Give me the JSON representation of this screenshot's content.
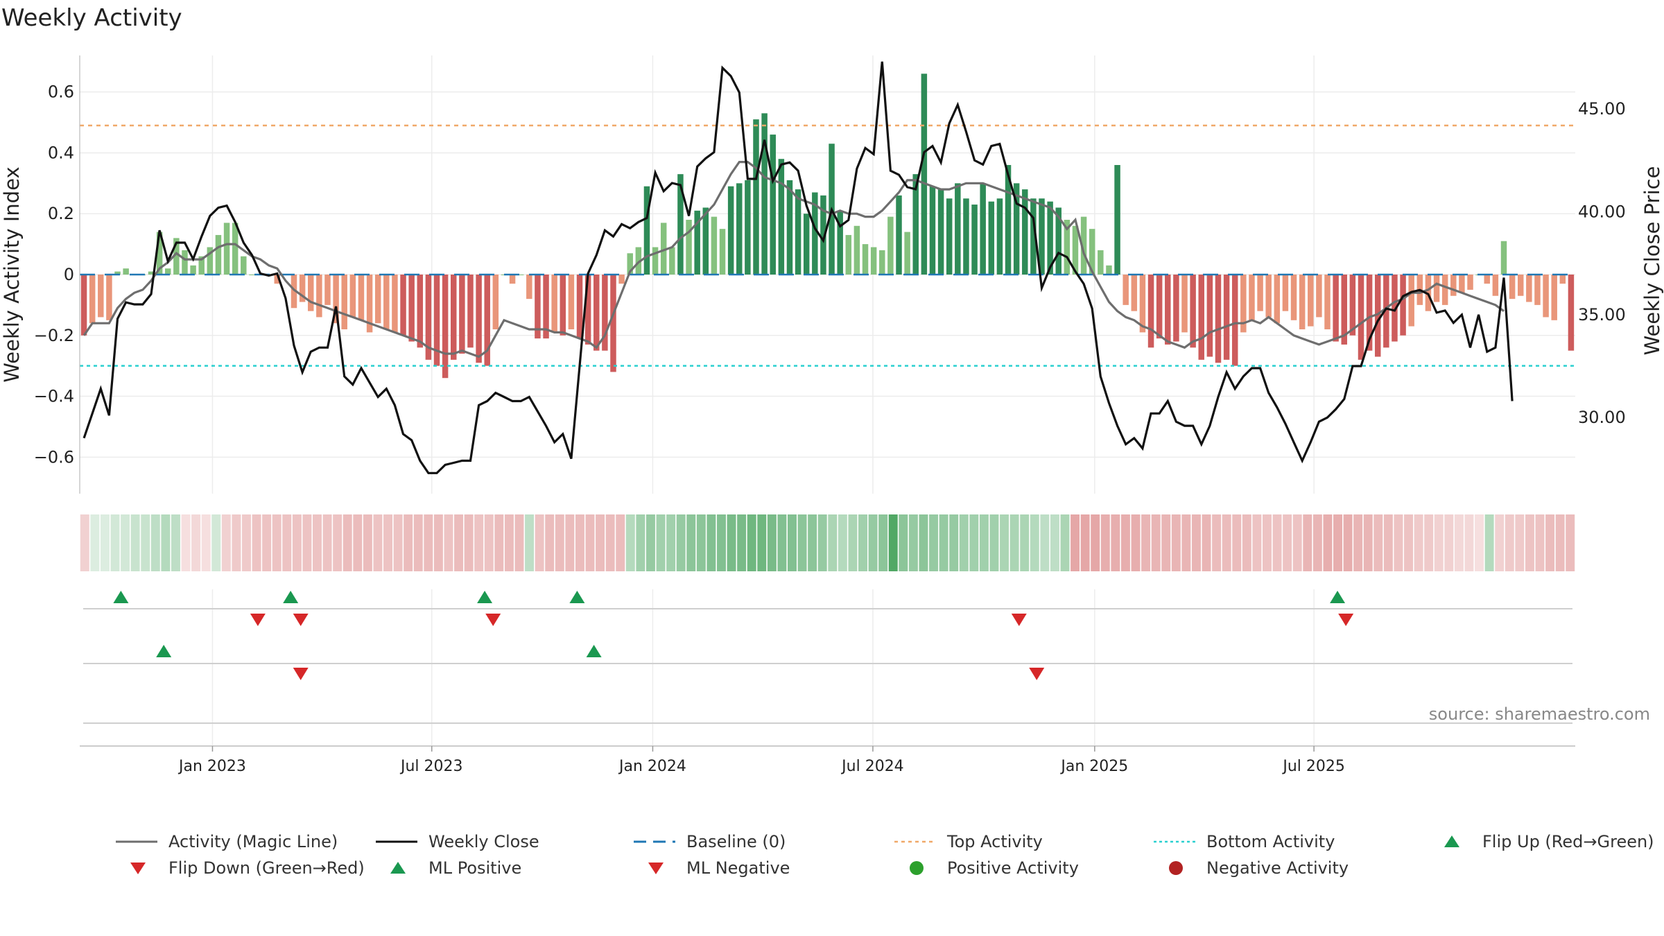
{
  "title": "Weekly Activity",
  "source": "source: sharemaestro.com",
  "colors": {
    "strong_pos": "#2e8b57",
    "weak_pos": "#85c17e",
    "strong_neg": "#cd5c5c",
    "weak_neg": "#e9967a",
    "magic_line": "#6e6e6e",
    "close_line": "#111111",
    "baseline": "#1f77b4",
    "top_line": "#f0a868",
    "bottom_line": "#2ad0d0",
    "flip_up": "#1a9850",
    "flip_down": "#d62728",
    "positive_dot": "#2ca02c",
    "negative_dot": "#b22222"
  },
  "chart_data": {
    "type": "bar",
    "title": "Weekly Activity",
    "ylabel": "Weekly Activity Index",
    "y2label": "Weekly Close Price",
    "ylim": [
      -0.72,
      0.72
    ],
    "y2lim": [
      26.3,
      47.6
    ],
    "yticks": [
      "0.6",
      "0.4",
      "0.2",
      "0",
      "−0.2",
      "−0.4",
      "−0.6"
    ],
    "yticks_values": [
      0.6,
      0.4,
      0.2,
      0,
      -0.2,
      -0.4,
      -0.6
    ],
    "y2ticks": [
      "45.00",
      "40.00",
      "35.00",
      "30.00"
    ],
    "y2ticks_values": [
      45,
      40,
      35,
      30
    ],
    "xticks": [
      "Jan 2023",
      "Jul 2023",
      "Jan 2024",
      "Jul 2024",
      "Jan 2025",
      "Jul 2025"
    ],
    "xticks_week_index": [
      15.3,
      41.4,
      67.7,
      93.9,
      120.3,
      146.4
    ],
    "n_weeks": 158,
    "top_activity": 0.49,
    "bottom_activity": -0.3,
    "activity": [
      -0.2,
      -0.16,
      -0.14,
      -0.15,
      0.01,
      0.02,
      0,
      0,
      0.01,
      0.14,
      0.02,
      0.12,
      0.08,
      0.03,
      0.06,
      0.09,
      0.13,
      0.17,
      0.17,
      0.06,
      0,
      0,
      0,
      -0.03,
      0,
      -0.11,
      -0.09,
      -0.12,
      -0.14,
      -0.1,
      -0.16,
      -0.18,
      -0.14,
      -0.15,
      -0.19,
      -0.16,
      -0.18,
      -0.19,
      -0.2,
      -0.22,
      -0.24,
      -0.28,
      -0.3,
      -0.34,
      -0.28,
      -0.26,
      -0.24,
      -0.29,
      -0.3,
      -0.18,
      0,
      -0.03,
      0,
      -0.08,
      -0.21,
      -0.21,
      -0.19,
      -0.2,
      -0.18,
      -0.21,
      -0.23,
      -0.25,
      -0.25,
      -0.32,
      -0.03,
      0.07,
      0.09,
      0.29,
      0.09,
      0.17,
      0.09,
      0.33,
      0.18,
      0.21,
      0.22,
      0.19,
      0.15,
      0.29,
      0.3,
      0.31,
      0.51,
      0.53,
      0.46,
      0.38,
      0.31,
      0.28,
      0.2,
      0.27,
      0.26,
      0.43,
      0.21,
      0.13,
      0.16,
      0.1,
      0.09,
      0.08,
      0.19,
      0.26,
      0.14,
      0.33,
      0.66,
      0.29,
      0.28,
      0.25,
      0.3,
      0.25,
      0.23,
      0.3,
      0.24,
      0.25,
      0.36,
      0.3,
      0.28,
      0.25,
      0.25,
      0.24,
      0.22,
      0.18,
      0.16,
      0.19,
      0.15,
      0.08,
      0.03,
      0.36,
      -0.1,
      -0.12,
      -0.19,
      -0.24,
      -0.21,
      -0.23,
      -0.22,
      -0.19,
      -0.24,
      -0.28,
      -0.27,
      -0.29,
      -0.28,
      -0.3,
      -0.19,
      -0.15,
      -0.12,
      -0.14,
      -0.16,
      -0.12,
      -0.15,
      -0.18,
      -0.17,
      -0.14,
      -0.18,
      -0.22,
      -0.23,
      -0.2,
      -0.28,
      -0.25,
      -0.27,
      -0.24,
      -0.22,
      -0.2
    ],
    "activity_tail": [
      -0.17,
      -0.1,
      -0.12,
      -0.09,
      -0.1,
      -0.07,
      -0.06,
      -0.05,
      0,
      -0.03,
      -0.07,
      0.11,
      -0.08,
      -0.07,
      -0.09,
      -0.1,
      -0.14,
      -0.15,
      -0.03,
      -0.25
    ],
    "magic_line": [
      -0.2,
      -0.16,
      -0.16,
      -0.16,
      -0.11,
      -0.08,
      -0.06,
      -0.05,
      -0.02,
      0.02,
      0.04,
      0.07,
      0.05,
      0.05,
      0.05,
      0.07,
      0.09,
      0.1,
      0.1,
      0.08,
      0.06,
      0.05,
      0.03,
      0.02,
      -0.02,
      -0.05,
      -0.07,
      -0.09,
      -0.1,
      -0.11,
      -0.12,
      -0.13,
      -0.14,
      -0.15,
      -0.16,
      -0.17,
      -0.18,
      -0.19,
      -0.2,
      -0.21,
      -0.22,
      -0.24,
      -0.25,
      -0.26,
      -0.26,
      -0.25,
      -0.26,
      -0.27,
      -0.25,
      -0.2,
      -0.15,
      -0.16,
      -0.17,
      -0.18,
      -0.18,
      -0.18,
      -0.19,
      -0.19,
      -0.2,
      -0.21,
      -0.22,
      -0.24,
      -0.2,
      -0.13,
      -0.06,
      0.01,
      0.04,
      0.06,
      0.07,
      0.08,
      0.09,
      0.12,
      0.14,
      0.17,
      0.2,
      0.23,
      0.28,
      0.33,
      0.37,
      0.37,
      0.35,
      0.32,
      0.31,
      0.3,
      0.28,
      0.25,
      0.24,
      0.23,
      0.21,
      0.2,
      0.21,
      0.2,
      0.2,
      0.19,
      0.19,
      0.21,
      0.24,
      0.27,
      0.31,
      0.31,
      0.3,
      0.29,
      0.28,
      0.28,
      0.29,
      0.3,
      0.3,
      0.3,
      0.29,
      0.28,
      0.27,
      0.26,
      0.25,
      0.24,
      0.23,
      0.22,
      0.19,
      0.15,
      0.18,
      0.07,
      0.01,
      -0.04,
      -0.09,
      -0.12,
      -0.14,
      -0.15,
      -0.17,
      -0.18,
      -0.2,
      -0.22,
      -0.23,
      -0.24,
      -0.22,
      -0.21,
      -0.19,
      -0.18,
      -0.17,
      -0.16,
      -0.16,
      -0.15,
      -0.16,
      -0.14,
      -0.16,
      -0.18,
      -0.2,
      -0.21,
      -0.22,
      -0.23,
      -0.22,
      -0.21,
      -0.2,
      -0.18,
      -0.16,
      -0.14,
      -0.13,
      -0.11,
      -0.09,
      -0.08,
      -0.06,
      -0.06
    ],
    "magic_line_tail": [
      -0.05,
      -0.03,
      -0.04,
      -0.05,
      -0.06,
      -0.07,
      -0.08,
      -0.09,
      -0.1,
      -0.12
    ],
    "weekly_close": [
      29.0,
      30.2,
      31.4,
      30.1,
      34.8,
      35.6,
      35.5,
      35.5,
      36.0,
      39.1,
      37.6,
      38.5,
      38.5,
      37.7,
      38.8,
      39.8,
      40.2,
      40.3,
      39.5,
      38.5,
      37.9,
      37.0,
      36.9,
      37.0,
      35.8,
      33.5,
      32.2,
      33.2,
      33.4,
      33.4,
      35.4,
      32.0,
      31.6,
      32.4,
      31.7,
      31.0,
      31.4,
      30.6,
      29.2,
      28.9,
      27.9,
      27.3,
      27.3,
      27.7,
      27.8,
      27.9,
      27.9,
      30.6,
      30.8,
      31.2,
      31.0,
      30.8,
      30.8,
      31.0,
      30.3,
      29.6,
      28.8,
      29.2,
      28.0,
      32.5,
      37.0,
      37.9,
      39.1,
      38.8,
      39.4,
      39.2,
      39.5,
      39.7,
      41.9,
      41.0,
      41.4,
      41.3,
      39.8,
      42.2,
      42.6,
      42.9,
      47.0,
      46.6,
      45.8,
      41.6,
      41.6,
      43.5,
      41.5,
      42.3,
      42.4,
      42.0,
      40.3,
      39.2,
      38.6,
      40.1,
      39.3,
      39.6,
      42.1,
      43.1,
      42.8,
      47.3,
      42.0,
      41.8,
      41.2,
      41.1,
      42.9,
      43.2,
      42.4,
      44.3,
      45.2,
      43.9,
      42.5,
      42.3,
      43.2,
      43.3,
      41.8,
      40.4,
      40.2,
      39.7,
      36.3,
      37.3,
      38.0,
      37.8,
      37.1,
      36.5,
      35.3,
      32.0,
      30.7,
      29.6,
      28.7,
      29.0,
      28.5,
      30.2,
      30.2,
      30.8,
      29.8,
      29.6,
      29.6,
      28.7,
      29.6,
      31.0,
      32.2,
      31.4,
      32.0,
      32.4,
      32.4,
      31.2,
      30.5,
      29.7,
      28.8,
      27.9,
      28.8,
      29.8,
      30.0,
      30.4,
      30.9,
      32.5,
      32.5,
      33.8,
      34.7,
      35.3,
      35.2,
      35.9,
      36.1,
      36.2,
      36.0,
      35.1
    ],
    "weekly_close_tail": [
      35.2,
      34.6,
      35.0,
      33.4,
      35.0,
      33.2,
      33.4,
      36.8,
      30.8
    ],
    "strip_values": [
      -0.2,
      0.05,
      0.05,
      0.1,
      0.1,
      0.15,
      0.15,
      0.2,
      0.25,
      0.2,
      -0.1,
      -0.15,
      -0.1,
      0.1,
      -0.2,
      -0.25,
      -0.25,
      -0.3,
      -0.3,
      -0.3,
      -0.3,
      -0.3,
      -0.3,
      -0.3,
      -0.3,
      -0.3,
      -0.35,
      -0.35,
      -0.35,
      -0.3,
      -0.3,
      -0.3,
      -0.35,
      -0.35,
      -0.35,
      -0.35,
      -0.3,
      -0.35,
      -0.35,
      -0.3,
      -0.3,
      -0.35,
      -0.35,
      -0.35,
      0.2,
      -0.3,
      -0.35,
      -0.35,
      -0.35,
      -0.35,
      -0.35,
      -0.35,
      -0.35,
      -0.35,
      0.25,
      0.35,
      0.4,
      0.35,
      0.35,
      0.4,
      0.45,
      0.45,
      0.5,
      0.5,
      0.55,
      0.55,
      0.6,
      0.6,
      0.55,
      0.5,
      0.5,
      0.45,
      0.45,
      0.4,
      0.3,
      0.25,
      0.3,
      0.35,
      0.4,
      0.45,
      0.75,
      0.45,
      0.4,
      0.45,
      0.4,
      0.4,
      0.4,
      0.35,
      0.35,
      0.35,
      0.35,
      0.3,
      0.3,
      0.3,
      0.25,
      0.2,
      0.2,
      0.3,
      -0.5,
      -0.5,
      -0.5,
      -0.45,
      -0.45,
      -0.45,
      -0.45,
      -0.4,
      -0.4,
      -0.4,
      -0.4,
      -0.4,
      -0.4,
      -0.4,
      -0.35,
      -0.35,
      -0.35,
      -0.35,
      -0.3,
      -0.3,
      -0.3,
      -0.3,
      -0.3,
      -0.4,
      -0.4,
      -0.45,
      -0.45,
      -0.45,
      -0.4,
      -0.4,
      -0.35,
      -0.35,
      -0.3,
      -0.3,
      -0.25,
      -0.25,
      -0.2,
      -0.2,
      -0.15,
      -0.15,
      -0.1,
      0.25,
      -0.2,
      -0.25,
      -0.25,
      -0.3,
      -0.3,
      -0.35,
      -0.35,
      -0.35
    ],
    "events_row1_up": [
      4.4,
      24.6,
      47.7,
      58.7,
      149.2
    ],
    "events_row1_down": [
      20.7,
      25.8,
      48.7,
      111.3,
      150.2
    ],
    "events_row2_up": [
      9.5,
      60.7
    ],
    "events_row2_down": [
      25.8,
      113.4
    ],
    "legend": [
      {
        "label": "Activity (Magic Line)",
        "kind": "line-gray"
      },
      {
        "label": "Weekly Close",
        "kind": "line-black"
      },
      {
        "label": "Baseline (0)",
        "kind": "dash-blue"
      },
      {
        "label": "Top Activity",
        "kind": "dot-orange"
      },
      {
        "label": "Bottom Activity",
        "kind": "dot-cyan"
      },
      {
        "label": "Flip Up (Red→Green)",
        "kind": "tri-up"
      },
      {
        "label": "Flip Down (Green→Red)",
        "kind": "tri-down"
      },
      {
        "label": "ML Positive",
        "kind": "tri-up"
      },
      {
        "label": "ML Negative",
        "kind": "tri-down"
      },
      {
        "label": "Positive Activity",
        "kind": "dot-green"
      },
      {
        "label": "Negative Activity",
        "kind": "dot-red"
      }
    ]
  }
}
